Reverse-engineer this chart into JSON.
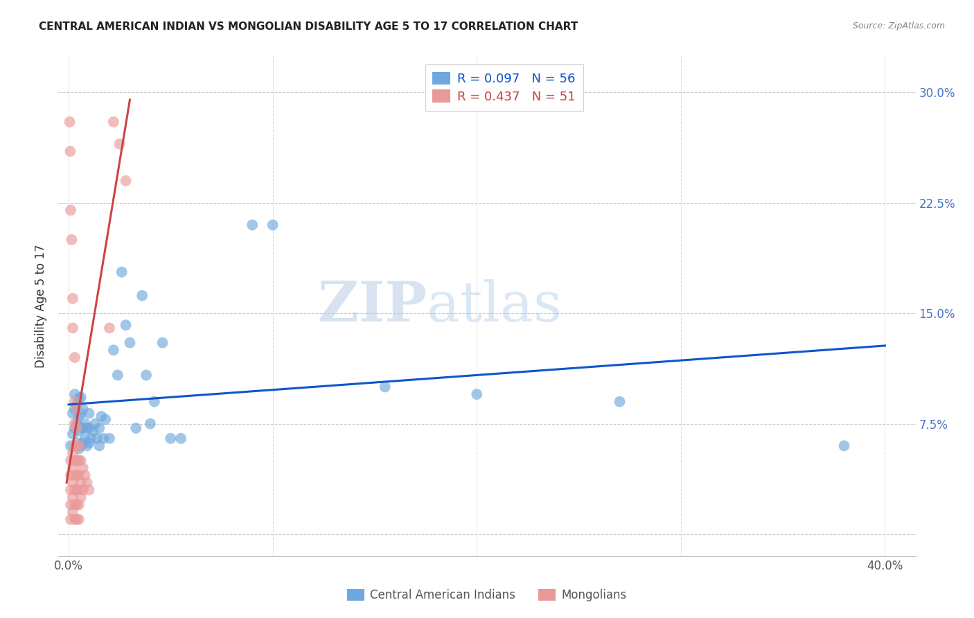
{
  "title": "CENTRAL AMERICAN INDIAN VS MONGOLIAN DISABILITY AGE 5 TO 17 CORRELATION CHART",
  "source": "Source: ZipAtlas.com",
  "ylabel": "Disability Age 5 to 17",
  "x_tick_positions": [
    0.0,
    0.1,
    0.2,
    0.3,
    0.4
  ],
  "x_tick_labels": [
    "0.0%",
    "",
    "",
    "",
    "40.0%"
  ],
  "y_tick_positions": [
    0.0,
    0.075,
    0.15,
    0.225,
    0.3
  ],
  "y_tick_labels_right": [
    "",
    "7.5%",
    "15.0%",
    "22.5%",
    "30.0%"
  ],
  "xlim": [
    -0.005,
    0.415
  ],
  "ylim": [
    -0.015,
    0.325
  ],
  "legend_r1": "R = 0.097",
  "legend_n1": "N = 56",
  "legend_r2": "R = 0.437",
  "legend_n2": "N = 51",
  "blue_color": "#6fa8dc",
  "pink_color": "#ea9999",
  "blue_line_color": "#1155cc",
  "pink_line_color": "#cc4444",
  "watermark_zip": "ZIP",
  "watermark_atlas": "atlas",
  "blue_scatter": [
    [
      0.001,
      0.06
    ],
    [
      0.002,
      0.068
    ],
    [
      0.002,
      0.082
    ],
    [
      0.003,
      0.072
    ],
    [
      0.003,
      0.085
    ],
    [
      0.003,
      0.095
    ],
    [
      0.004,
      0.062
    ],
    [
      0.004,
      0.075
    ],
    [
      0.004,
      0.088
    ],
    [
      0.005,
      0.058
    ],
    [
      0.005,
      0.07
    ],
    [
      0.005,
      0.08
    ],
    [
      0.005,
      0.092
    ],
    [
      0.006,
      0.06
    ],
    [
      0.006,
      0.072
    ],
    [
      0.006,
      0.082
    ],
    [
      0.006,
      0.093
    ],
    [
      0.007,
      0.062
    ],
    [
      0.007,
      0.072
    ],
    [
      0.007,
      0.085
    ],
    [
      0.008,
      0.065
    ],
    [
      0.008,
      0.075
    ],
    [
      0.009,
      0.06
    ],
    [
      0.009,
      0.072
    ],
    [
      0.01,
      0.062
    ],
    [
      0.01,
      0.072
    ],
    [
      0.01,
      0.082
    ],
    [
      0.011,
      0.065
    ],
    [
      0.012,
      0.07
    ],
    [
      0.013,
      0.075
    ],
    [
      0.014,
      0.065
    ],
    [
      0.015,
      0.06
    ],
    [
      0.015,
      0.072
    ],
    [
      0.016,
      0.08
    ],
    [
      0.017,
      0.065
    ],
    [
      0.018,
      0.078
    ],
    [
      0.02,
      0.065
    ],
    [
      0.022,
      0.125
    ],
    [
      0.024,
      0.108
    ],
    [
      0.026,
      0.178
    ],
    [
      0.028,
      0.142
    ],
    [
      0.03,
      0.13
    ],
    [
      0.033,
      0.072
    ],
    [
      0.036,
      0.162
    ],
    [
      0.038,
      0.108
    ],
    [
      0.04,
      0.075
    ],
    [
      0.042,
      0.09
    ],
    [
      0.046,
      0.13
    ],
    [
      0.05,
      0.065
    ],
    [
      0.055,
      0.065
    ],
    [
      0.09,
      0.21
    ],
    [
      0.1,
      0.21
    ],
    [
      0.155,
      0.1
    ],
    [
      0.2,
      0.095
    ],
    [
      0.27,
      0.09
    ],
    [
      0.38,
      0.06
    ]
  ],
  "pink_scatter": [
    [
      0.0005,
      0.28
    ],
    [
      0.0008,
      0.26
    ],
    [
      0.001,
      0.22
    ],
    [
      0.001,
      0.05
    ],
    [
      0.001,
      0.04
    ],
    [
      0.001,
      0.03
    ],
    [
      0.001,
      0.02
    ],
    [
      0.001,
      0.01
    ],
    [
      0.0015,
      0.2
    ],
    [
      0.002,
      0.16
    ],
    [
      0.002,
      0.14
    ],
    [
      0.002,
      0.055
    ],
    [
      0.002,
      0.045
    ],
    [
      0.002,
      0.035
    ],
    [
      0.002,
      0.025
    ],
    [
      0.002,
      0.015
    ],
    [
      0.003,
      0.12
    ],
    [
      0.003,
      0.09
    ],
    [
      0.003,
      0.075
    ],
    [
      0.003,
      0.06
    ],
    [
      0.003,
      0.05
    ],
    [
      0.003,
      0.04
    ],
    [
      0.003,
      0.03
    ],
    [
      0.003,
      0.02
    ],
    [
      0.003,
      0.01
    ],
    [
      0.004,
      0.085
    ],
    [
      0.004,
      0.072
    ],
    [
      0.004,
      0.06
    ],
    [
      0.004,
      0.05
    ],
    [
      0.004,
      0.04
    ],
    [
      0.004,
      0.03
    ],
    [
      0.004,
      0.02
    ],
    [
      0.004,
      0.01
    ],
    [
      0.005,
      0.06
    ],
    [
      0.005,
      0.05
    ],
    [
      0.005,
      0.04
    ],
    [
      0.005,
      0.03
    ],
    [
      0.005,
      0.02
    ],
    [
      0.005,
      0.01
    ],
    [
      0.006,
      0.05
    ],
    [
      0.006,
      0.035
    ],
    [
      0.006,
      0.025
    ],
    [
      0.007,
      0.045
    ],
    [
      0.007,
      0.03
    ],
    [
      0.008,
      0.04
    ],
    [
      0.009,
      0.035
    ],
    [
      0.01,
      0.03
    ],
    [
      0.02,
      0.14
    ],
    [
      0.022,
      0.28
    ],
    [
      0.025,
      0.265
    ],
    [
      0.028,
      0.24
    ]
  ],
  "blue_trendline": [
    [
      0.0,
      0.088
    ],
    [
      0.4,
      0.128
    ]
  ],
  "pink_trendline": [
    [
      -0.001,
      0.035
    ],
    [
      0.03,
      0.295
    ]
  ]
}
